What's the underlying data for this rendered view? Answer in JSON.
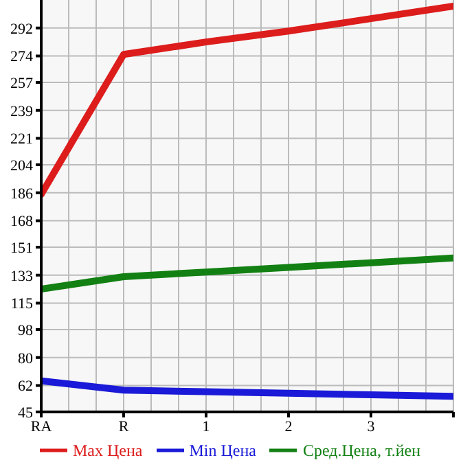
{
  "chart_data": {
    "type": "line",
    "categories": [
      "RA",
      "R",
      "1",
      "2",
      "3",
      null
    ],
    "series": [
      {
        "name": "Max Цена",
        "color": "#dd1c1c",
        "values": [
          185,
          275,
          283,
          290,
          298,
          306
        ]
      },
      {
        "name": "Min Цена",
        "color": "#1a1ad8",
        "values": [
          65,
          59,
          58,
          57,
          56,
          55
        ]
      },
      {
        "name": "Сред.Цена, т.йен",
        "color": "#138013",
        "values": [
          124,
          132,
          135,
          138,
          141,
          144
        ]
      }
    ],
    "ylim": [
      45,
      310
    ],
    "yticks": [
      45,
      62,
      80,
      98,
      115,
      133,
      151,
      168,
      186,
      204,
      221,
      239,
      257,
      274,
      292
    ],
    "grid": true,
    "legend": "bottom",
    "marker": "none",
    "line_style": "solid"
  }
}
